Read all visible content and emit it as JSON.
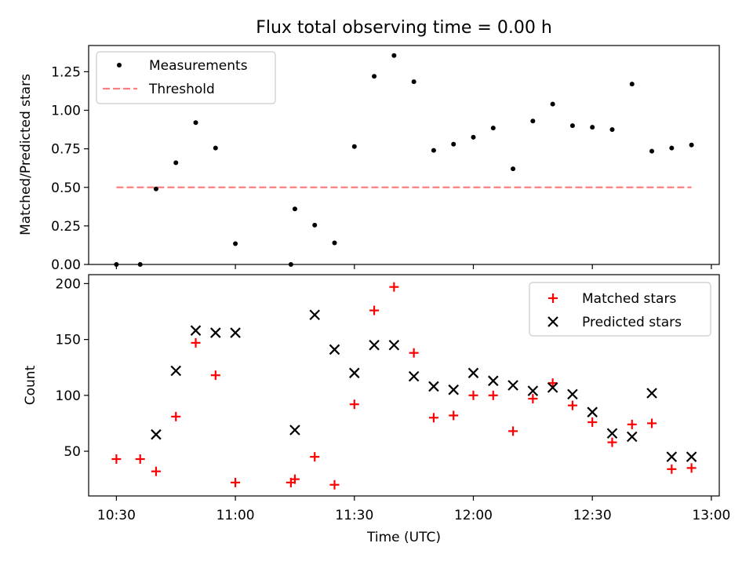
{
  "title": "Flux total observing time = 0.00 h",
  "chart_data": [
    {
      "type": "scatter",
      "panel": "top",
      "title": "Flux total observing time = 0.00 h",
      "xlabel": "",
      "ylabel": "Matched/Predicted stars",
      "xlim": [
        "10:23",
        "13:02"
      ],
      "ylim": [
        0,
        1.42
      ],
      "yticks": [
        "0.00",
        "0.25",
        "0.50",
        "0.75",
        "1.00",
        "1.25"
      ],
      "legend_position": "upper-left",
      "series": [
        {
          "name": "Measurements",
          "marker": "dot",
          "color": "#000000",
          "points": [
            [
              "10:30",
              0.0
            ],
            [
              "10:36",
              0.0
            ],
            [
              "10:40",
              0.49
            ],
            [
              "10:45",
              0.66
            ],
            [
              "10:50",
              0.92
            ],
            [
              "10:55",
              0.755
            ],
            [
              "11:00",
              0.135
            ],
            [
              "11:14",
              0.0
            ],
            [
              "11:15",
              0.36
            ],
            [
              "11:20",
              0.255
            ],
            [
              "11:25",
              0.14
            ],
            [
              "11:30",
              0.765
            ],
            [
              "11:35",
              1.22
            ],
            [
              "11:40",
              1.355
            ],
            [
              "11:45",
              1.185
            ],
            [
              "11:50",
              0.74
            ],
            [
              "11:55",
              0.78
            ],
            [
              "12:00",
              0.825
            ],
            [
              "12:05",
              0.885
            ],
            [
              "12:10",
              0.62
            ],
            [
              "12:15",
              0.93
            ],
            [
              "12:20",
              1.04
            ],
            [
              "12:25",
              0.9
            ],
            [
              "12:30",
              0.89
            ],
            [
              "12:35",
              0.875
            ],
            [
              "12:40",
              1.17
            ],
            [
              "12:45",
              0.735
            ],
            [
              "12:50",
              0.755
            ],
            [
              "12:55",
              0.775
            ]
          ]
        },
        {
          "name": "Threshold",
          "marker": "dashed-line",
          "color": "#ff7f7f",
          "points": [
            [
              "10:30",
              0.5
            ],
            [
              "12:55",
              0.5
            ]
          ]
        }
      ]
    },
    {
      "type": "scatter",
      "panel": "bottom",
      "xlabel": "Time (UTC)",
      "ylabel": "Count",
      "xlim": [
        "10:23",
        "13:02"
      ],
      "ylim": [
        10,
        208
      ],
      "xticks": [
        "10:30",
        "11:00",
        "11:30",
        "12:00",
        "12:30",
        "13:00"
      ],
      "yticks": [
        "50",
        "100",
        "150",
        "200"
      ],
      "legend_position": "upper-right",
      "series": [
        {
          "name": "Matched stars",
          "marker": "plus",
          "color": "#ff0000",
          "points": [
            [
              "10:30",
              43
            ],
            [
              "10:36",
              43
            ],
            [
              "10:40",
              32
            ],
            [
              "10:45",
              81
            ],
            [
              "10:50",
              147
            ],
            [
              "10:55",
              118
            ],
            [
              "11:00",
              22
            ],
            [
              "11:14",
              22
            ],
            [
              "11:15",
              25
            ],
            [
              "11:20",
              45
            ],
            [
              "11:25",
              20
            ],
            [
              "11:30",
              92
            ],
            [
              "11:35",
              176
            ],
            [
              "11:40",
              197
            ],
            [
              "11:45",
              138
            ],
            [
              "11:50",
              80
            ],
            [
              "11:55",
              82
            ],
            [
              "12:00",
              100
            ],
            [
              "12:05",
              100
            ],
            [
              "12:10",
              68
            ],
            [
              "12:15",
              97
            ],
            [
              "12:20",
              111
            ],
            [
              "12:25",
              91
            ],
            [
              "12:30",
              76
            ],
            [
              "12:35",
              58
            ],
            [
              "12:40",
              74
            ],
            [
              "12:45",
              75
            ],
            [
              "12:50",
              34
            ],
            [
              "12:55",
              35
            ]
          ]
        },
        {
          "name": "Predicted stars",
          "marker": "x",
          "color": "#000000",
          "points": [
            [
              "10:40",
              65
            ],
            [
              "10:45",
              122
            ],
            [
              "10:50",
              158
            ],
            [
              "10:55",
              156
            ],
            [
              "11:00",
              156
            ],
            [
              "11:15",
              69
            ],
            [
              "11:20",
              172
            ],
            [
              "11:25",
              141
            ],
            [
              "11:30",
              120
            ],
            [
              "11:35",
              145
            ],
            [
              "11:40",
              145
            ],
            [
              "11:45",
              117
            ],
            [
              "11:50",
              108
            ],
            [
              "11:55",
              105
            ],
            [
              "12:00",
              120
            ],
            [
              "12:05",
              113
            ],
            [
              "12:10",
              109
            ],
            [
              "12:15",
              104
            ],
            [
              "12:20",
              107
            ],
            [
              "12:25",
              101
            ],
            [
              "12:30",
              85
            ],
            [
              "12:35",
              66
            ],
            [
              "12:40",
              63
            ],
            [
              "12:45",
              102
            ],
            [
              "12:50",
              45
            ],
            [
              "12:55",
              45
            ]
          ]
        }
      ]
    }
  ]
}
